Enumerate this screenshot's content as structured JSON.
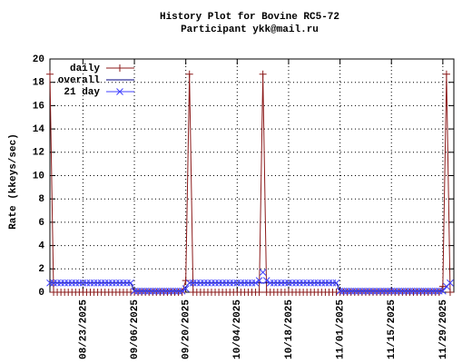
{
  "chart_data": {
    "type": "line",
    "title": "History Plot for Bovine RC5-72",
    "subtitle": "Participant ykk@mail.ru",
    "y_label": "Rate (kkeys/sec)",
    "xlim": [
      "2025-08-14",
      "2025-12-02"
    ],
    "ylim": [
      0,
      20
    ],
    "yticks": [
      0,
      2,
      4,
      6,
      8,
      10,
      12,
      14,
      16,
      18,
      20
    ],
    "xticks": [
      {
        "value": "2025-08-23",
        "label": "08/23/2025"
      },
      {
        "value": "2025-09-06",
        "label": "09/06/2025"
      },
      {
        "value": "2025-09-20",
        "label": "09/20/2025"
      },
      {
        "value": "2025-10-04",
        "label": "10/04/2025"
      },
      {
        "value": "2025-10-18",
        "label": "10/18/2025"
      },
      {
        "value": "2025-11-01",
        "label": "11/01/2025"
      },
      {
        "value": "2025-11-15",
        "label": "11/15/2025"
      },
      {
        "value": "2025-11-29",
        "label": "11/29/2025"
      }
    ],
    "grid": true,
    "legend": "top-left",
    "x": [
      "2025-08-14",
      "2025-08-15",
      "2025-08-16",
      "2025-08-17",
      "2025-08-18",
      "2025-08-19",
      "2025-08-20",
      "2025-08-21",
      "2025-08-22",
      "2025-08-23",
      "2025-08-24",
      "2025-08-25",
      "2025-08-26",
      "2025-08-27",
      "2025-08-28",
      "2025-08-29",
      "2025-08-30",
      "2025-08-31",
      "2025-09-01",
      "2025-09-02",
      "2025-09-03",
      "2025-09-04",
      "2025-09-05",
      "2025-09-06",
      "2025-09-07",
      "2025-09-08",
      "2025-09-09",
      "2025-09-10",
      "2025-09-11",
      "2025-09-12",
      "2025-09-13",
      "2025-09-14",
      "2025-09-15",
      "2025-09-16",
      "2025-09-17",
      "2025-09-18",
      "2025-09-19",
      "2025-09-20",
      "2025-09-21",
      "2025-09-22",
      "2025-09-23",
      "2025-09-24",
      "2025-09-25",
      "2025-09-26",
      "2025-09-27",
      "2025-09-28",
      "2025-09-29",
      "2025-09-30",
      "2025-10-01",
      "2025-10-02",
      "2025-10-03",
      "2025-10-04",
      "2025-10-05",
      "2025-10-06",
      "2025-10-07",
      "2025-10-08",
      "2025-10-09",
      "2025-10-10",
      "2025-10-11",
      "2025-10-12",
      "2025-10-13",
      "2025-10-14",
      "2025-10-15",
      "2025-10-16",
      "2025-10-17",
      "2025-10-18",
      "2025-10-19",
      "2025-10-20",
      "2025-10-21",
      "2025-10-22",
      "2025-10-23",
      "2025-10-24",
      "2025-10-25",
      "2025-10-26",
      "2025-10-27",
      "2025-10-28",
      "2025-10-29",
      "2025-10-30",
      "2025-10-31",
      "2025-11-01",
      "2025-11-02",
      "2025-11-03",
      "2025-11-04",
      "2025-11-05",
      "2025-11-06",
      "2025-11-07",
      "2025-11-08",
      "2025-11-09",
      "2025-11-10",
      "2025-11-11",
      "2025-11-12",
      "2025-11-13",
      "2025-11-14",
      "2025-11-15",
      "2025-11-16",
      "2025-11-17",
      "2025-11-18",
      "2025-11-19",
      "2025-11-20",
      "2025-11-21",
      "2025-11-22",
      "2025-11-23",
      "2025-11-24",
      "2025-11-25",
      "2025-11-26",
      "2025-11-27",
      "2025-11-28",
      "2025-11-29",
      "2025-11-30",
      "2025-12-01"
    ],
    "series": [
      {
        "name": "daily",
        "color": "#8b1a1a",
        "marker": "plus",
        "line": true,
        "values": [
          18.7,
          0,
          0,
          0,
          0,
          0,
          0,
          0,
          0,
          0,
          0,
          0,
          0,
          0,
          0,
          0,
          0,
          0,
          0,
          0,
          0,
          0,
          0,
          0,
          0,
          0,
          0,
          0,
          0,
          0,
          0,
          0,
          0,
          0,
          0,
          0,
          0,
          1,
          18.7,
          0,
          0,
          0,
          0,
          0,
          0,
          0,
          0,
          0,
          0,
          0,
          0,
          0,
          0,
          0,
          0,
          0,
          0,
          0,
          18.7,
          0,
          0,
          0,
          0,
          0,
          0,
          0,
          0,
          0,
          0,
          0,
          0,
          0,
          0,
          0,
          0,
          0,
          0,
          0,
          0,
          0,
          0,
          0,
          0,
          0,
          0,
          0,
          0,
          0,
          0,
          0,
          0,
          0,
          0,
          0,
          0,
          0,
          0,
          0,
          0,
          0,
          0,
          0,
          0,
          0,
          0,
          0,
          0,
          0.5,
          18.7,
          0
        ]
      },
      {
        "name": "overall",
        "color": "#000080",
        "line": true,
        "x": [
          "2025-08-14",
          "2025-09-05",
          "2025-09-06",
          "2025-09-19",
          "2025-09-21",
          "2025-10-31",
          "2025-11-01",
          "2025-11-29",
          "2025-12-01"
        ],
        "values": [
          0.8,
          0.8,
          0.1,
          0.1,
          0.8,
          0.8,
          0.1,
          0.1,
          0.8
        ]
      },
      {
        "name": "21 day",
        "color": "#4040ff",
        "marker": "cross",
        "line": false,
        "values": [
          0.8,
          0.8,
          0.8,
          0.8,
          0.8,
          0.8,
          0.8,
          0.8,
          0.8,
          0.8,
          0.8,
          0.8,
          0.8,
          0.8,
          0.8,
          0.8,
          0.8,
          0.8,
          0.8,
          0.8,
          0.8,
          0.8,
          0.8,
          0.1,
          0.1,
          0.1,
          0.1,
          0.1,
          0.1,
          0.1,
          0.1,
          0.1,
          0.1,
          0.1,
          0.1,
          0.1,
          0.1,
          0.3,
          0.8,
          0.8,
          0.8,
          0.8,
          0.8,
          0.8,
          0.8,
          0.8,
          0.8,
          0.8,
          0.8,
          0.8,
          0.8,
          0.8,
          0.8,
          0.8,
          0.8,
          0.8,
          0.8,
          1.0,
          1.7,
          1.0,
          0.8,
          0.8,
          0.8,
          0.8,
          0.8,
          0.8,
          0.8,
          0.8,
          0.8,
          0.8,
          0.8,
          0.8,
          0.8,
          0.8,
          0.8,
          0.8,
          0.8,
          0.8,
          0.8,
          0.1,
          0.1,
          0.1,
          0.1,
          0.1,
          0.1,
          0.1,
          0.1,
          0.1,
          0.1,
          0.1,
          0.1,
          0.1,
          0.1,
          0.1,
          0.1,
          0.1,
          0.1,
          0.1,
          0.1,
          0.1,
          0.1,
          0.1,
          0.1,
          0.1,
          0.1,
          0.1,
          0.1,
          0.1,
          0.5,
          0.8
        ]
      }
    ]
  }
}
